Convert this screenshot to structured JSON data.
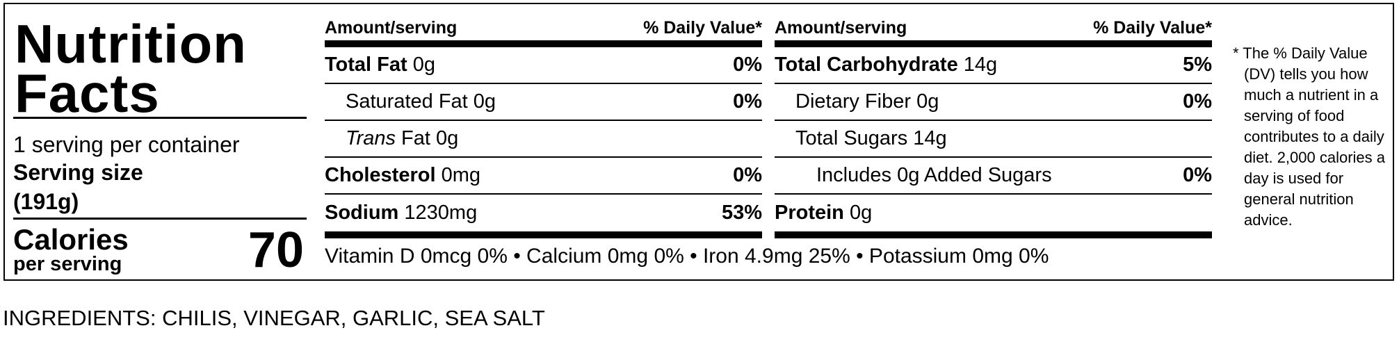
{
  "title_line1": "Nutrition",
  "title_line2": "Facts",
  "servings": "1 serving per container",
  "serving_size_label": "Serving size",
  "serving_size": "(191g)",
  "calories_label": "Calories",
  "calories_sub": "per serving",
  "calories": "70",
  "columns": [
    {
      "header_left": "Amount/serving",
      "header_right": "% Daily Value*",
      "rows": [
        {
          "name": "Total Fat",
          "amount": "0g",
          "dv": "0%",
          "bold": true,
          "indent": 0
        },
        {
          "name": "Saturated Fat",
          "amount": "0g",
          "dv": "0%",
          "bold": false,
          "indent": 1
        },
        {
          "name_italic": "Trans",
          "name": "Fat",
          "amount": "0g",
          "bold": false,
          "indent": 1
        },
        {
          "name": "Cholesterol",
          "amount": "0mg",
          "dv": "0%",
          "bold": true,
          "indent": 0
        },
        {
          "name": "Sodium",
          "amount": "1230mg",
          "dv": "53%",
          "bold": true,
          "indent": 0
        }
      ]
    },
    {
      "header_left": "Amount/serving",
      "header_right": "% Daily Value*",
      "rows": [
        {
          "name": "Total Carbohydrate",
          "amount": "14g",
          "dv": "5%",
          "bold": true,
          "indent": 0
        },
        {
          "name": "Dietary Fiber",
          "amount": "0g",
          "dv": "0%",
          "bold": false,
          "indent": 1
        },
        {
          "name": "Total Sugars",
          "amount": "14g",
          "bold": false,
          "indent": 1
        },
        {
          "name": "Includes 0g Added Sugars",
          "dv": "0%",
          "bold": false,
          "indent": 2
        },
        {
          "name": "Protein",
          "amount": "0g",
          "bold": true,
          "indent": 0
        }
      ]
    }
  ],
  "vitamins": "Vitamin D 0mcg 0% • Calcium 0mg 0% • Iron 4.9mg 25% • Potassium 0mg 0%",
  "footnote": "* The % Daily Value (DV) tells you how much a nutrient in a serving of food contributes to a daily diet. 2,000 calories a day is used for general nutrition advice.",
  "ingredients": "INGREDIENTS: CHILIS, VINEGAR, GARLIC, SEA SALT"
}
